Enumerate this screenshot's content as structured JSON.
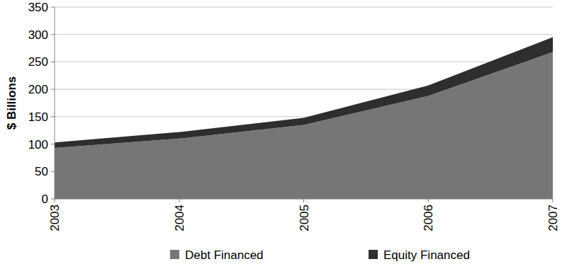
{
  "chart_data": {
    "type": "area",
    "stacked": true,
    "y_label": "$ Billions",
    "x": [
      2003,
      2004,
      2005,
      2006,
      2007
    ],
    "xlim": [
      2003,
      2007
    ],
    "xticks": [
      2003,
      2004,
      2005,
      2006,
      2007
    ],
    "ylim": [
      0,
      350
    ],
    "yticks": [
      0,
      50,
      100,
      150,
      200,
      250,
      300,
      350
    ],
    "grid": true,
    "legend": "bottom",
    "series": [
      {
        "name": "Debt Financed",
        "color": "#767676",
        "values": [
          93,
          110,
          135,
          188,
          268
        ]
      },
      {
        "name": "Equity Financed",
        "color": "#2e2e2e",
        "values": [
          10,
          12,
          13,
          19,
          27
        ]
      }
    ]
  }
}
